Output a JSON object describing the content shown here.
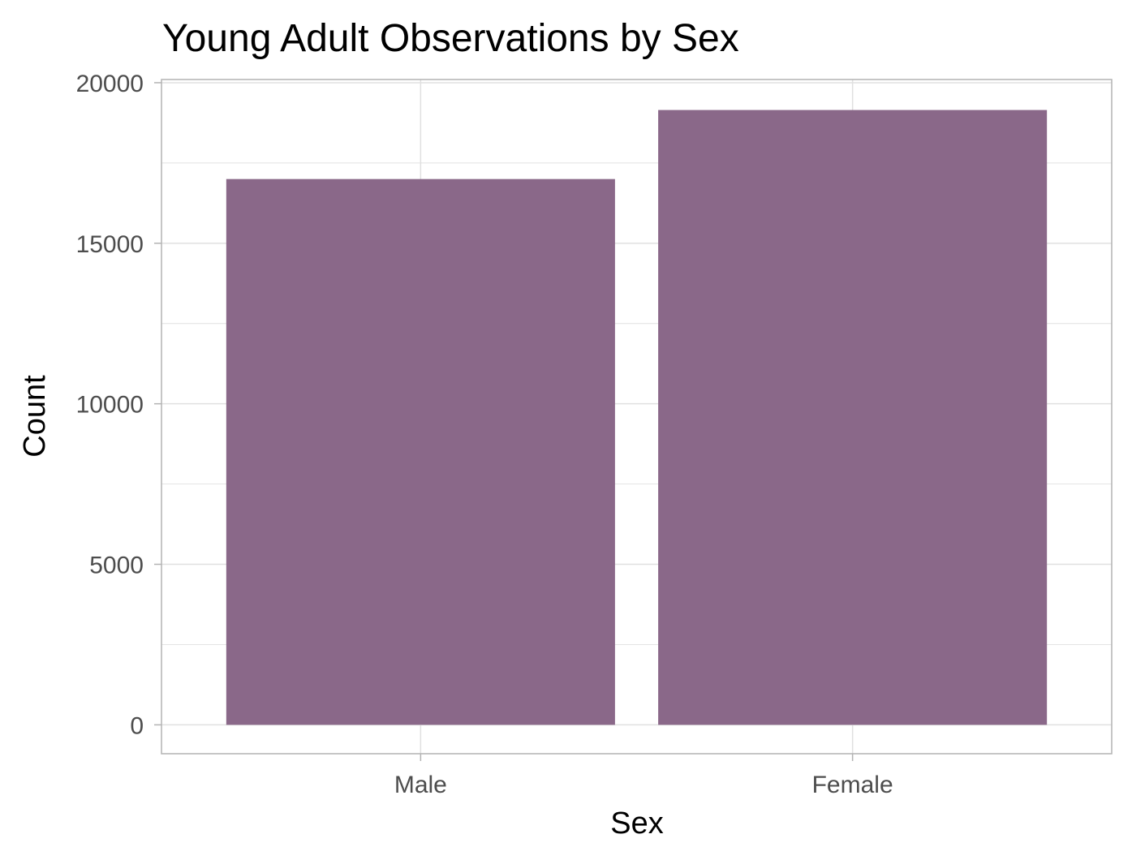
{
  "chart_data": {
    "type": "bar",
    "title": "Young Adult Observations by Sex",
    "xlabel": "Sex",
    "ylabel": "Count",
    "categories": [
      "Male",
      "Female"
    ],
    "values": [
      17000,
      19150
    ],
    "ylim": [
      -900,
      20100
    ],
    "yticks": [
      0,
      5000,
      10000,
      15000,
      20000
    ],
    "ytick_labels": [
      "0",
      "5000",
      "10000",
      "15000",
      "20000"
    ],
    "grid": true,
    "legend": "none",
    "bar_color": "#8a6889",
    "grid_color": "#e0e0e0",
    "panel_border_color": "#b3b3b3"
  }
}
